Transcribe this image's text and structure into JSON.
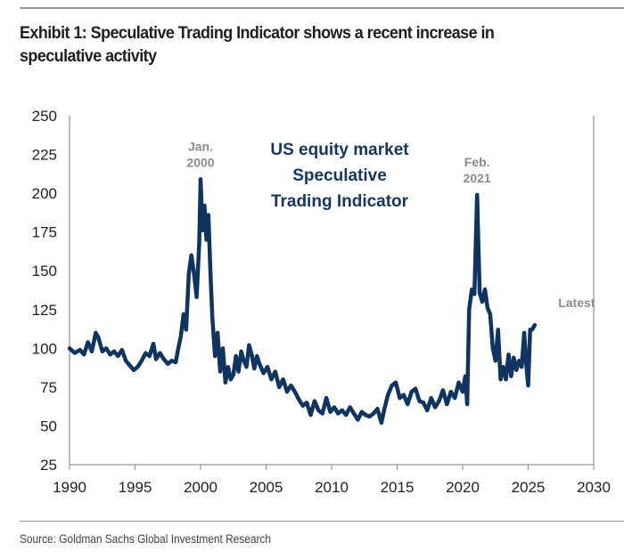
{
  "header": {
    "title": "Exhibit 1: Speculative Trading Indicator shows a recent increase in speculative activity"
  },
  "footer": {
    "source": "Source: Goldman Sachs Global Investment Research"
  },
  "colors": {
    "series": "#0f3460",
    "annotation": "#8c8c8c",
    "inner_title": "#17365d",
    "axis": "#9a9a9a"
  },
  "chart_data": {
    "type": "line",
    "title": "US equity market Speculative Trading Indicator",
    "title_lines": [
      "US equity market",
      "Speculative",
      "Trading Indicator"
    ],
    "xlabel": "",
    "ylabel": "",
    "xlim": [
      1990,
      2030
    ],
    "ylim": [
      25,
      250
    ],
    "xticks": [
      "1990",
      "1995",
      "2000",
      "2005",
      "2010",
      "2015",
      "2020",
      "2025",
      "2030"
    ],
    "yticks": [
      "250",
      "225",
      "200",
      "175",
      "150",
      "125",
      "100",
      "75",
      "50",
      "25"
    ],
    "grid": false,
    "legend": "none",
    "annotations": [
      {
        "lines": [
          "Jan.",
          "2000"
        ],
        "x": 2000.0,
        "y": 209
      },
      {
        "lines": [
          "Feb.",
          "2021"
        ],
        "x": 2021.1,
        "y": 199
      },
      {
        "lines": [
          "Latest"
        ],
        "x": 2025.5,
        "y": 115
      }
    ],
    "series": [
      {
        "name": "Speculative Trading Indicator",
        "x": [
          1990.0,
          1990.4,
          1990.8,
          1991.1,
          1991.4,
          1991.7,
          1992.0,
          1992.2,
          1992.5,
          1992.8,
          1993.1,
          1993.4,
          1993.7,
          1994.0,
          1994.3,
          1994.6,
          1994.9,
          1995.2,
          1995.5,
          1995.8,
          1996.1,
          1996.4,
          1996.6,
          1996.9,
          1997.2,
          1997.5,
          1997.8,
          1998.1,
          1998.3,
          1998.5,
          1998.7,
          1998.9,
          1999.1,
          1999.3,
          1999.5,
          1999.7,
          1999.9,
          2000.0,
          2000.15,
          2000.3,
          2000.45,
          2000.6,
          2000.75,
          2000.9,
          2001.1,
          2001.3,
          2001.5,
          2001.7,
          2001.9,
          2002.1,
          2002.3,
          2002.5,
          2002.7,
          2002.9,
          2003.1,
          2003.3,
          2003.5,
          2003.7,
          2003.9,
          2004.1,
          2004.3,
          2004.5,
          2004.8,
          2005.1,
          2005.4,
          2005.7,
          2006.0,
          2006.3,
          2006.6,
          2006.9,
          2007.2,
          2007.5,
          2007.8,
          2008.1,
          2008.4,
          2008.7,
          2009.0,
          2009.3,
          2009.6,
          2009.9,
          2010.2,
          2010.5,
          2010.8,
          2011.1,
          2011.4,
          2011.7,
          2012.0,
          2012.3,
          2012.6,
          2012.9,
          2013.2,
          2013.5,
          2013.8,
          2014.0,
          2014.3,
          2014.6,
          2014.9,
          2015.2,
          2015.5,
          2015.8,
          2016.1,
          2016.4,
          2016.7,
          2017.0,
          2017.3,
          2017.6,
          2017.9,
          2018.2,
          2018.5,
          2018.8,
          2019.1,
          2019.4,
          2019.7,
          2020.0,
          2020.2,
          2020.35,
          2020.5,
          2020.7,
          2020.9,
          2021.1,
          2021.3,
          2021.5,
          2021.7,
          2021.9,
          2022.1,
          2022.3,
          2022.5,
          2022.7,
          2022.9,
          2023.1,
          2023.3,
          2023.5,
          2023.7,
          2023.9,
          2024.1,
          2024.3,
          2024.5,
          2024.7,
          2024.85,
          2025.0,
          2025.15,
          2025.3,
          2025.5
        ],
        "y": [
          100,
          97,
          99,
          96,
          104,
          98,
          110,
          107,
          98,
          100,
          96,
          98,
          95,
          99,
          92,
          89,
          86,
          88,
          92,
          97,
          95,
          103,
          93,
          97,
          93,
          90,
          92,
          91,
          100,
          108,
          122,
          112,
          148,
          160,
          148,
          133,
          168,
          209,
          176,
          192,
          170,
          186,
          150,
          120,
          95,
          110,
          85,
          100,
          78,
          88,
          80,
          83,
          95,
          85,
          98,
          92,
          88,
          102,
          96,
          87,
          95,
          90,
          84,
          88,
          80,
          85,
          75,
          80,
          72,
          76,
          72,
          67,
          63,
          65,
          57,
          66,
          60,
          58,
          68,
          59,
          62,
          58,
          60,
          57,
          62,
          58,
          54,
          59,
          57,
          56,
          58,
          61,
          52,
          60,
          70,
          76,
          78,
          68,
          70,
          64,
          72,
          74,
          66,
          65,
          60,
          68,
          62,
          66,
          73,
          64,
          72,
          68,
          78,
          72,
          82,
          64,
          125,
          138,
          135,
          199,
          136,
          130,
          138,
          126,
          122,
          100,
          92,
          112,
          80,
          88,
          80,
          96,
          82,
          94,
          86,
          92,
          88,
          110,
          90,
          76,
          112,
          112,
          115
        ]
      }
    ]
  }
}
